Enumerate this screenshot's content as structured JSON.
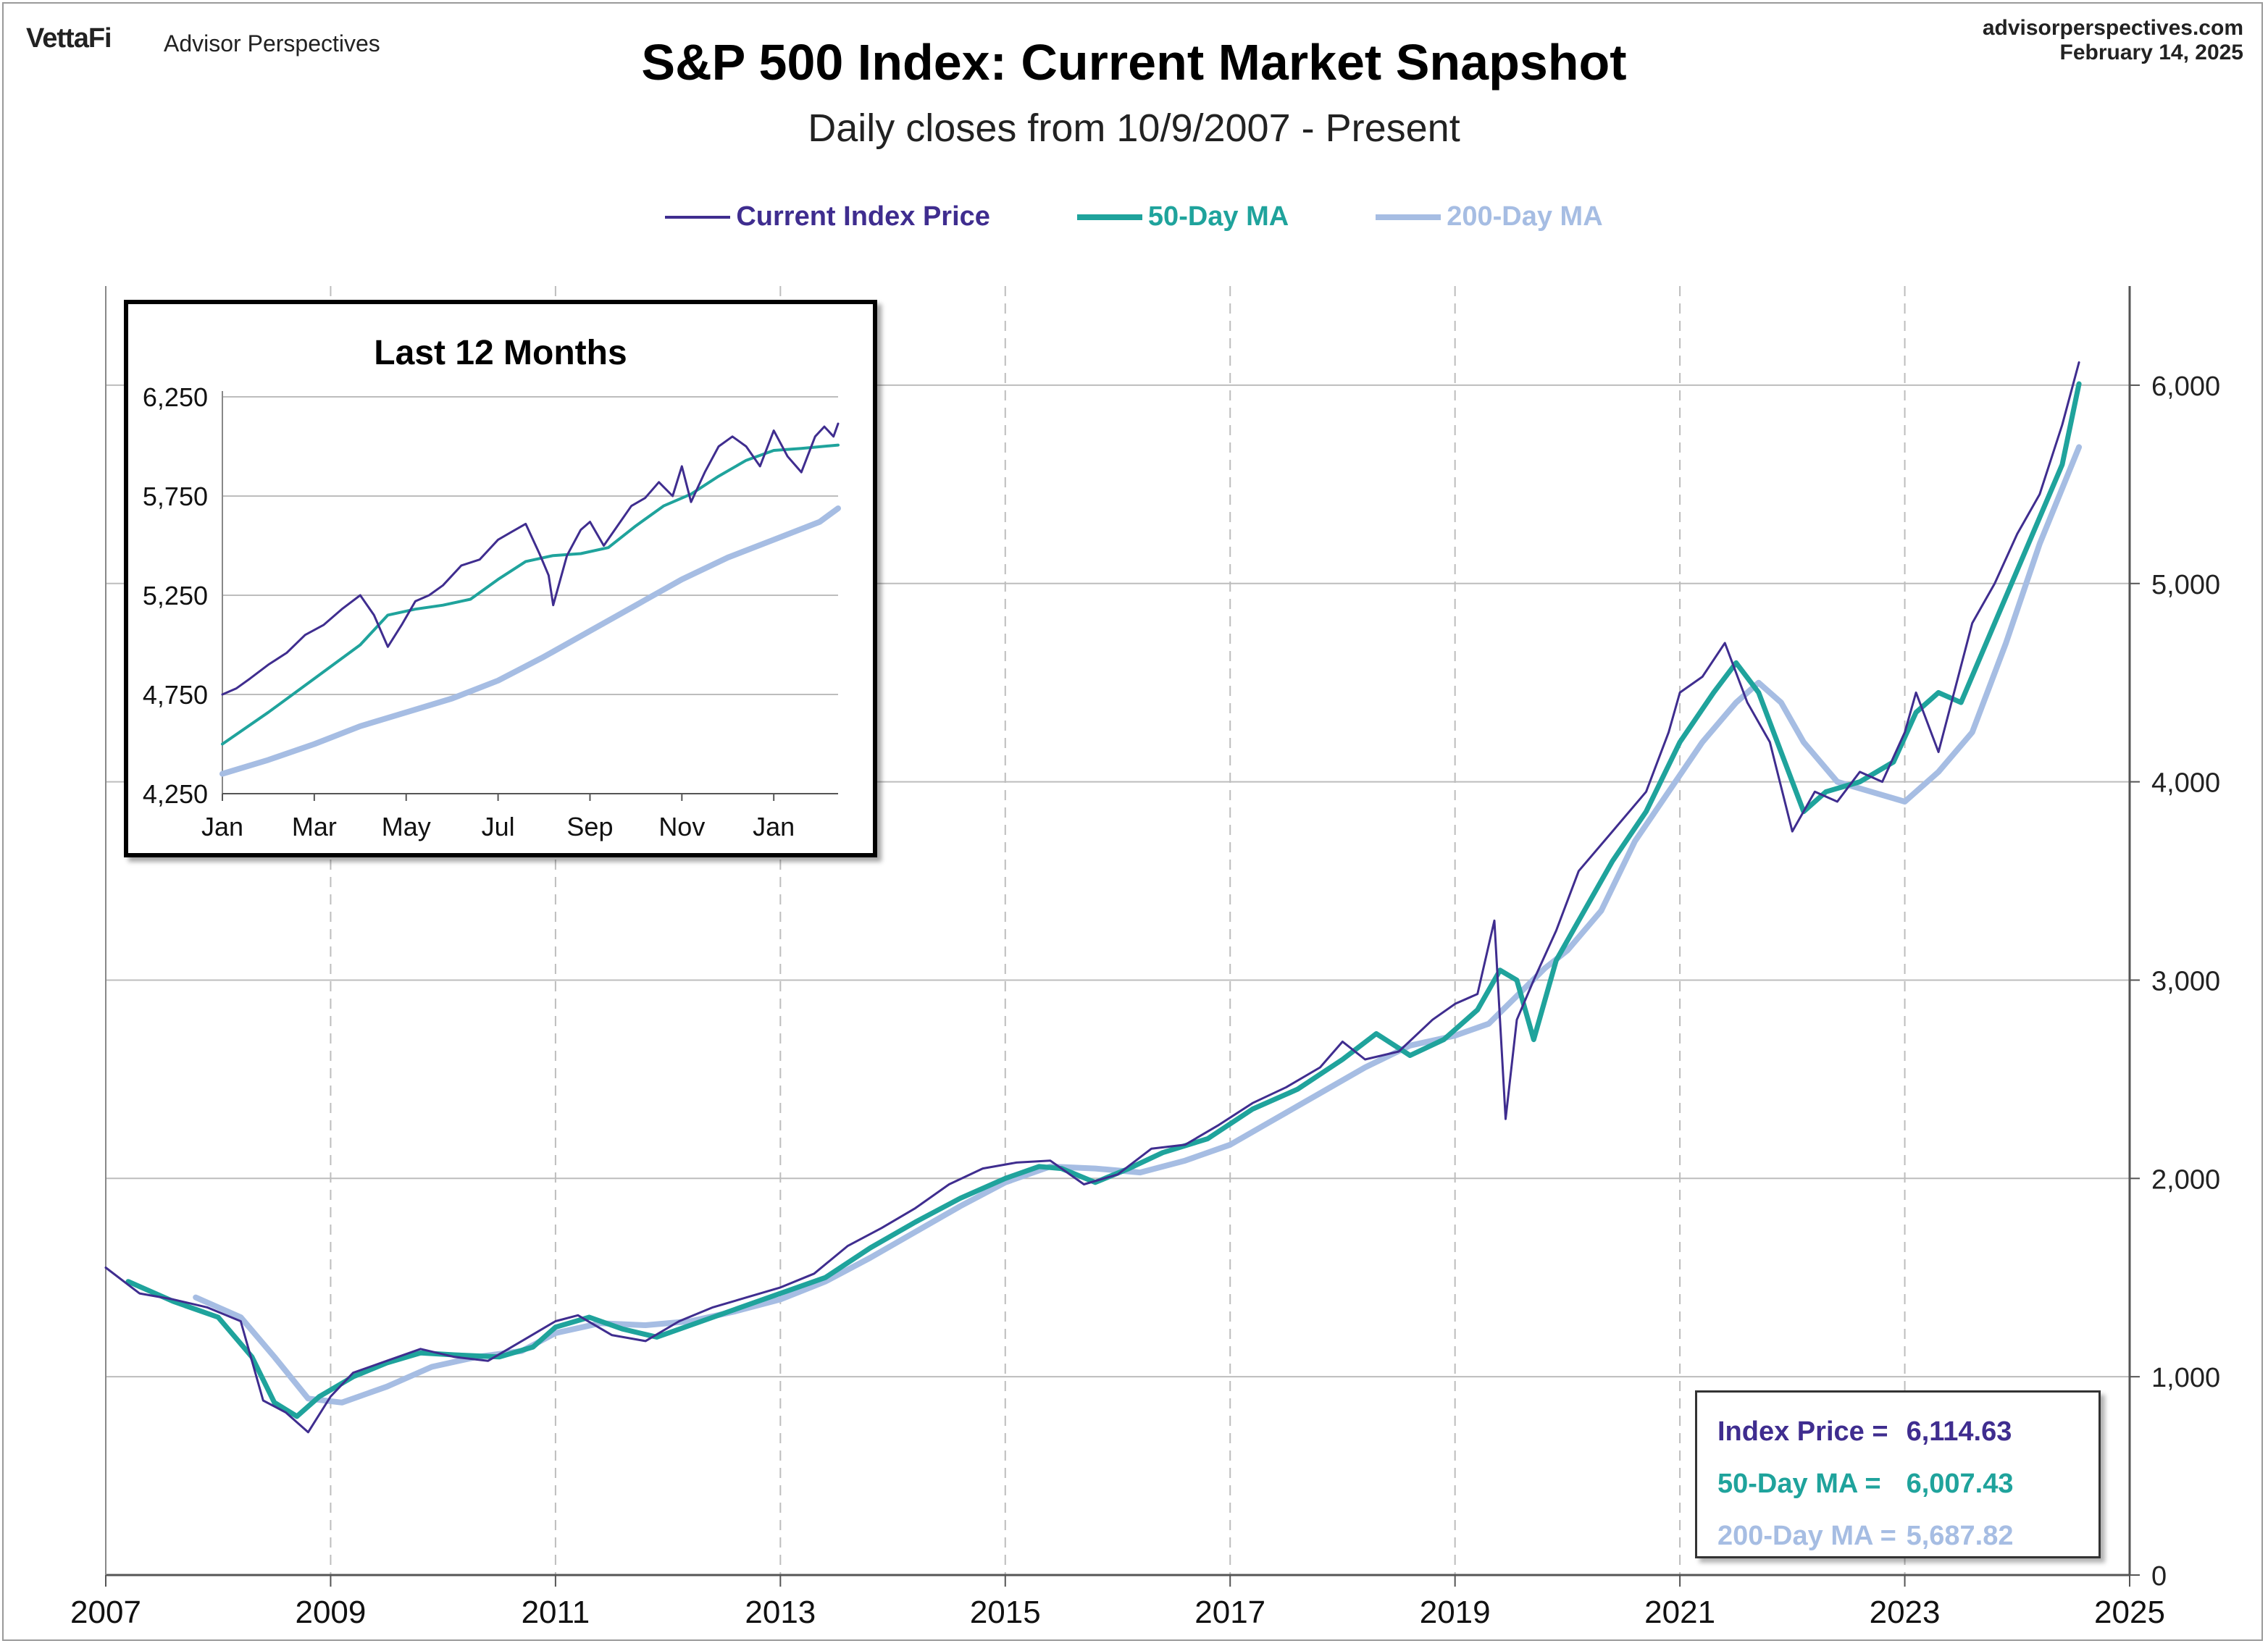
{
  "header": {
    "brand": "VettaFi",
    "brand_sub": "Advisor Perspectives",
    "site": "advisorperspectives.com",
    "date": "February 14, 2025",
    "title": "S&P 500 Index: Current Market Snapshot",
    "subtitle": "Daily closes from 10/9/2007 - Present"
  },
  "colors": {
    "price": "#3f2d8f",
    "ma50": "#1fa39c",
    "ma200": "#a6bde3",
    "grid": "#bdbdbd"
  },
  "legend": [
    {
      "label": "Current Index Price",
      "color": "#3f2d8f"
    },
    {
      "label": "50-Day MA",
      "color": "#1fa39c"
    },
    {
      "label": "200-Day MA",
      "color": "#a6bde3"
    }
  ],
  "readout": {
    "price_label": "Index Price =",
    "price_value": "6,114.63",
    "ma50_label": "50-Day MA =",
    "ma50_value": "6,007.43",
    "ma200_label": "200-Day MA =",
    "ma200_value": "5,687.82"
  },
  "chart_data": [
    {
      "type": "line",
      "title": "S&P 500 Index: Current Market Snapshot",
      "subtitle": "Daily closes from 10/9/2007 - Present",
      "xlim": [
        2007,
        2025
      ],
      "x_ticks": [
        "2007",
        "2009",
        "2011",
        "2013",
        "2015",
        "2017",
        "2019",
        "2021",
        "2023",
        "2025"
      ],
      "ylim": [
        0,
        6500
      ],
      "y_ticks": [
        "0",
        "1,000",
        "2,000",
        "3,000",
        "4,000",
        "5,000",
        "6,000"
      ],
      "y_axis_side": "right",
      "grid": "horizontal solid, vertical dashed",
      "series": [
        {
          "name": "Current Index Price",
          "x": [
            2007.0,
            2007.3,
            2007.6,
            2007.9,
            2008.2,
            2008.4,
            2008.6,
            2008.8,
            2009.0,
            2009.2,
            2009.5,
            2009.8,
            2010.1,
            2010.4,
            2010.7,
            2011.0,
            2011.2,
            2011.5,
            2011.8,
            2012.1,
            2012.4,
            2012.7,
            2013.0,
            2013.3,
            2013.6,
            2013.9,
            2014.2,
            2014.5,
            2014.8,
            2015.1,
            2015.4,
            2015.7,
            2016.0,
            2016.3,
            2016.6,
            2016.9,
            2017.2,
            2017.5,
            2017.8,
            2018.0,
            2018.2,
            2018.5,
            2018.8,
            2019.0,
            2019.2,
            2019.35,
            2019.45,
            2019.55,
            2019.7,
            2019.9,
            2020.1,
            2020.4,
            2020.7,
            2020.9,
            2021.0,
            2021.2,
            2021.4,
            2021.6,
            2021.8,
            2022.0,
            2022.2,
            2022.4,
            2022.6,
            2022.8,
            2023.0,
            2023.1,
            2023.3,
            2023.6,
            2023.8,
            2024.0,
            2024.2,
            2024.4,
            2024.55
          ],
          "values": [
            1550,
            1420,
            1390,
            1350,
            1280,
            880,
            820,
            720,
            900,
            1020,
            1080,
            1140,
            1100,
            1080,
            1180,
            1280,
            1310,
            1210,
            1180,
            1280,
            1350,
            1400,
            1450,
            1520,
            1660,
            1750,
            1850,
            1970,
            2050,
            2080,
            2090,
            1970,
            2020,
            2150,
            2170,
            2270,
            2380,
            2460,
            2560,
            2690,
            2600,
            2640,
            2800,
            2880,
            2930,
            3300,
            2300,
            2800,
            3000,
            3250,
            3550,
            3750,
            3950,
            4250,
            4450,
            4530,
            4700,
            4400,
            4200,
            3750,
            3950,
            3900,
            4050,
            4000,
            4250,
            4450,
            4150,
            4800,
            5000,
            5250,
            5450,
            5800,
            6115
          ]
        },
        {
          "name": "50-Day MA",
          "x": [
            2007.2,
            2007.6,
            2008.0,
            2008.3,
            2008.5,
            2008.7,
            2008.9,
            2009.2,
            2009.5,
            2009.8,
            2010.1,
            2010.5,
            2010.8,
            2011.0,
            2011.3,
            2011.6,
            2011.9,
            2012.2,
            2012.6,
            2013.0,
            2013.4,
            2013.8,
            2014.2,
            2014.6,
            2015.0,
            2015.3,
            2015.5,
            2015.8,
            2016.1,
            2016.4,
            2016.8,
            2017.2,
            2017.6,
            2018.0,
            2018.3,
            2018.6,
            2018.9,
            2019.2,
            2019.4,
            2019.55,
            2019.7,
            2019.9,
            2020.1,
            2020.4,
            2020.7,
            2021.0,
            2021.3,
            2021.5,
            2021.7,
            2021.9,
            2022.1,
            2022.3,
            2022.6,
            2022.9,
            2023.1,
            2023.3,
            2023.5,
            2023.8,
            2024.1,
            2024.4,
            2024.55
          ],
          "values": [
            1480,
            1380,
            1300,
            1100,
            870,
            800,
            900,
            1000,
            1070,
            1120,
            1110,
            1100,
            1150,
            1250,
            1300,
            1240,
            1200,
            1260,
            1340,
            1420,
            1500,
            1650,
            1780,
            1900,
            2000,
            2060,
            2050,
            1980,
            2050,
            2130,
            2200,
            2350,
            2450,
            2600,
            2730,
            2620,
            2700,
            2850,
            3050,
            3000,
            2700,
            3100,
            3300,
            3600,
            3850,
            4200,
            4450,
            4600,
            4450,
            4150,
            3850,
            3950,
            4000,
            4100,
            4350,
            4450,
            4400,
            4800,
            5200,
            5600,
            6007
          ]
        },
        {
          "name": "200-Day MA",
          "x": [
            2007.8,
            2008.2,
            2008.5,
            2008.8,
            2009.1,
            2009.5,
            2009.9,
            2010.3,
            2010.7,
            2011.0,
            2011.4,
            2011.8,
            2012.2,
            2012.6,
            2013.0,
            2013.4,
            2013.8,
            2014.2,
            2014.6,
            2015.0,
            2015.4,
            2015.8,
            2016.2,
            2016.6,
            2017.0,
            2017.4,
            2017.8,
            2018.2,
            2018.6,
            2019.0,
            2019.3,
            2019.55,
            2019.8,
            2020.0,
            2020.3,
            2020.6,
            2020.9,
            2021.2,
            2021.5,
            2021.7,
            2021.9,
            2022.1,
            2022.4,
            2022.7,
            2023.0,
            2023.3,
            2023.6,
            2023.9,
            2024.2,
            2024.55
          ],
          "values": [
            1400,
            1300,
            1100,
            890,
            870,
            950,
            1050,
            1100,
            1130,
            1220,
            1270,
            1260,
            1280,
            1330,
            1390,
            1480,
            1600,
            1730,
            1860,
            1980,
            2060,
            2050,
            2030,
            2090,
            2170,
            2300,
            2430,
            2560,
            2670,
            2720,
            2780,
            2920,
            3060,
            3150,
            3350,
            3700,
            3950,
            4200,
            4400,
            4500,
            4400,
            4200,
            4000,
            3950,
            3900,
            4050,
            4250,
            4700,
            5200,
            5688
          ]
        }
      ]
    },
    {
      "type": "line",
      "title": "Last 12 Months",
      "x_ticks": [
        "Jan",
        "Mar",
        "May",
        "Jul",
        "Sep",
        "Nov",
        "Jan"
      ],
      "xlim": [
        0,
        13.4
      ],
      "ylim": [
        4250,
        6250
      ],
      "y_ticks": [
        "6,250",
        "5,750",
        "5,250",
        "4,750",
        "4,250"
      ],
      "series": [
        {
          "name": "Current Index Price",
          "x": [
            0.0,
            0.3,
            0.6,
            1.0,
            1.4,
            1.8,
            2.2,
            2.6,
            3.0,
            3.3,
            3.6,
            3.9,
            4.2,
            4.5,
            4.8,
            5.2,
            5.6,
            6.0,
            6.3,
            6.6,
            6.9,
            7.1,
            7.2,
            7.5,
            7.8,
            8.0,
            8.3,
            8.6,
            8.9,
            9.2,
            9.5,
            9.8,
            10.0,
            10.2,
            10.5,
            10.8,
            11.1,
            11.4,
            11.7,
            12.0,
            12.3,
            12.6,
            12.9,
            13.1,
            13.3,
            13.4
          ],
          "values": [
            4750,
            4780,
            4830,
            4900,
            4960,
            5050,
            5100,
            5180,
            5250,
            5150,
            4990,
            5100,
            5220,
            5250,
            5300,
            5400,
            5430,
            5530,
            5570,
            5610,
            5460,
            5350,
            5200,
            5450,
            5580,
            5620,
            5500,
            5600,
            5700,
            5740,
            5820,
            5750,
            5900,
            5720,
            5870,
            6000,
            6050,
            6000,
            5900,
            6080,
            5950,
            5870,
            6050,
            6100,
            6050,
            6115
          ]
        },
        {
          "name": "50-Day MA",
          "x": [
            0.0,
            1.0,
            2.0,
            3.0,
            3.6,
            4.2,
            4.8,
            5.4,
            6.0,
            6.6,
            7.2,
            7.8,
            8.4,
            9.0,
            9.6,
            10.2,
            10.8,
            11.4,
            12.0,
            12.6,
            13.4
          ],
          "values": [
            4500,
            4660,
            4830,
            5000,
            5150,
            5180,
            5200,
            5230,
            5330,
            5420,
            5450,
            5460,
            5490,
            5600,
            5700,
            5760,
            5850,
            5930,
            5980,
            5990,
            6007
          ]
        },
        {
          "name": "200-Day MA",
          "x": [
            0.0,
            1.0,
            2.0,
            3.0,
            4.0,
            5.0,
            6.0,
            7.0,
            8.0,
            9.0,
            10.0,
            11.0,
            12.0,
            13.0,
            13.4
          ],
          "values": [
            4350,
            4420,
            4500,
            4590,
            4660,
            4730,
            4820,
            4940,
            5070,
            5200,
            5330,
            5440,
            5530,
            5620,
            5688
          ]
        }
      ]
    }
  ]
}
